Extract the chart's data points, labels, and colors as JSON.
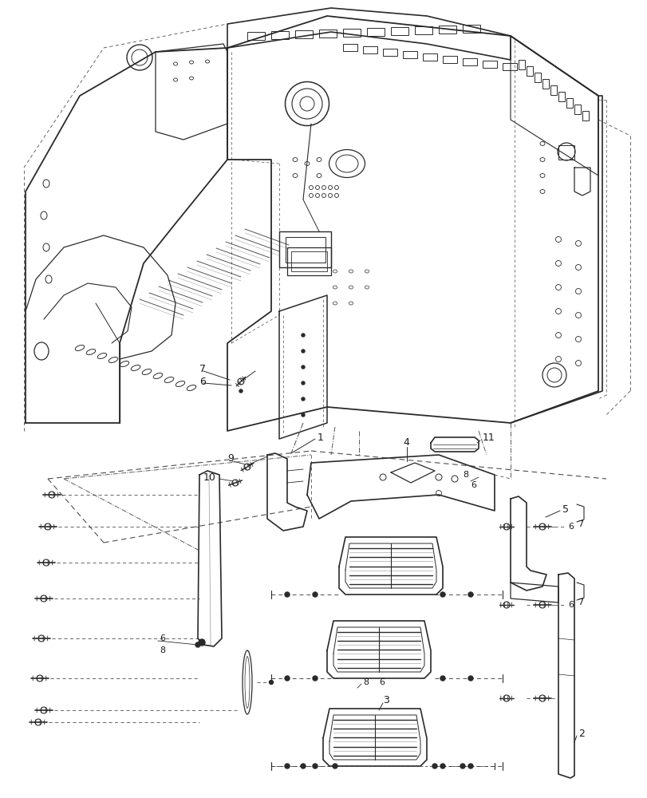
{
  "background_color": "#ffffff",
  "line_color": "#2a2a2a",
  "figure_width": 8.12,
  "figure_height": 10.0,
  "dpi": 100
}
